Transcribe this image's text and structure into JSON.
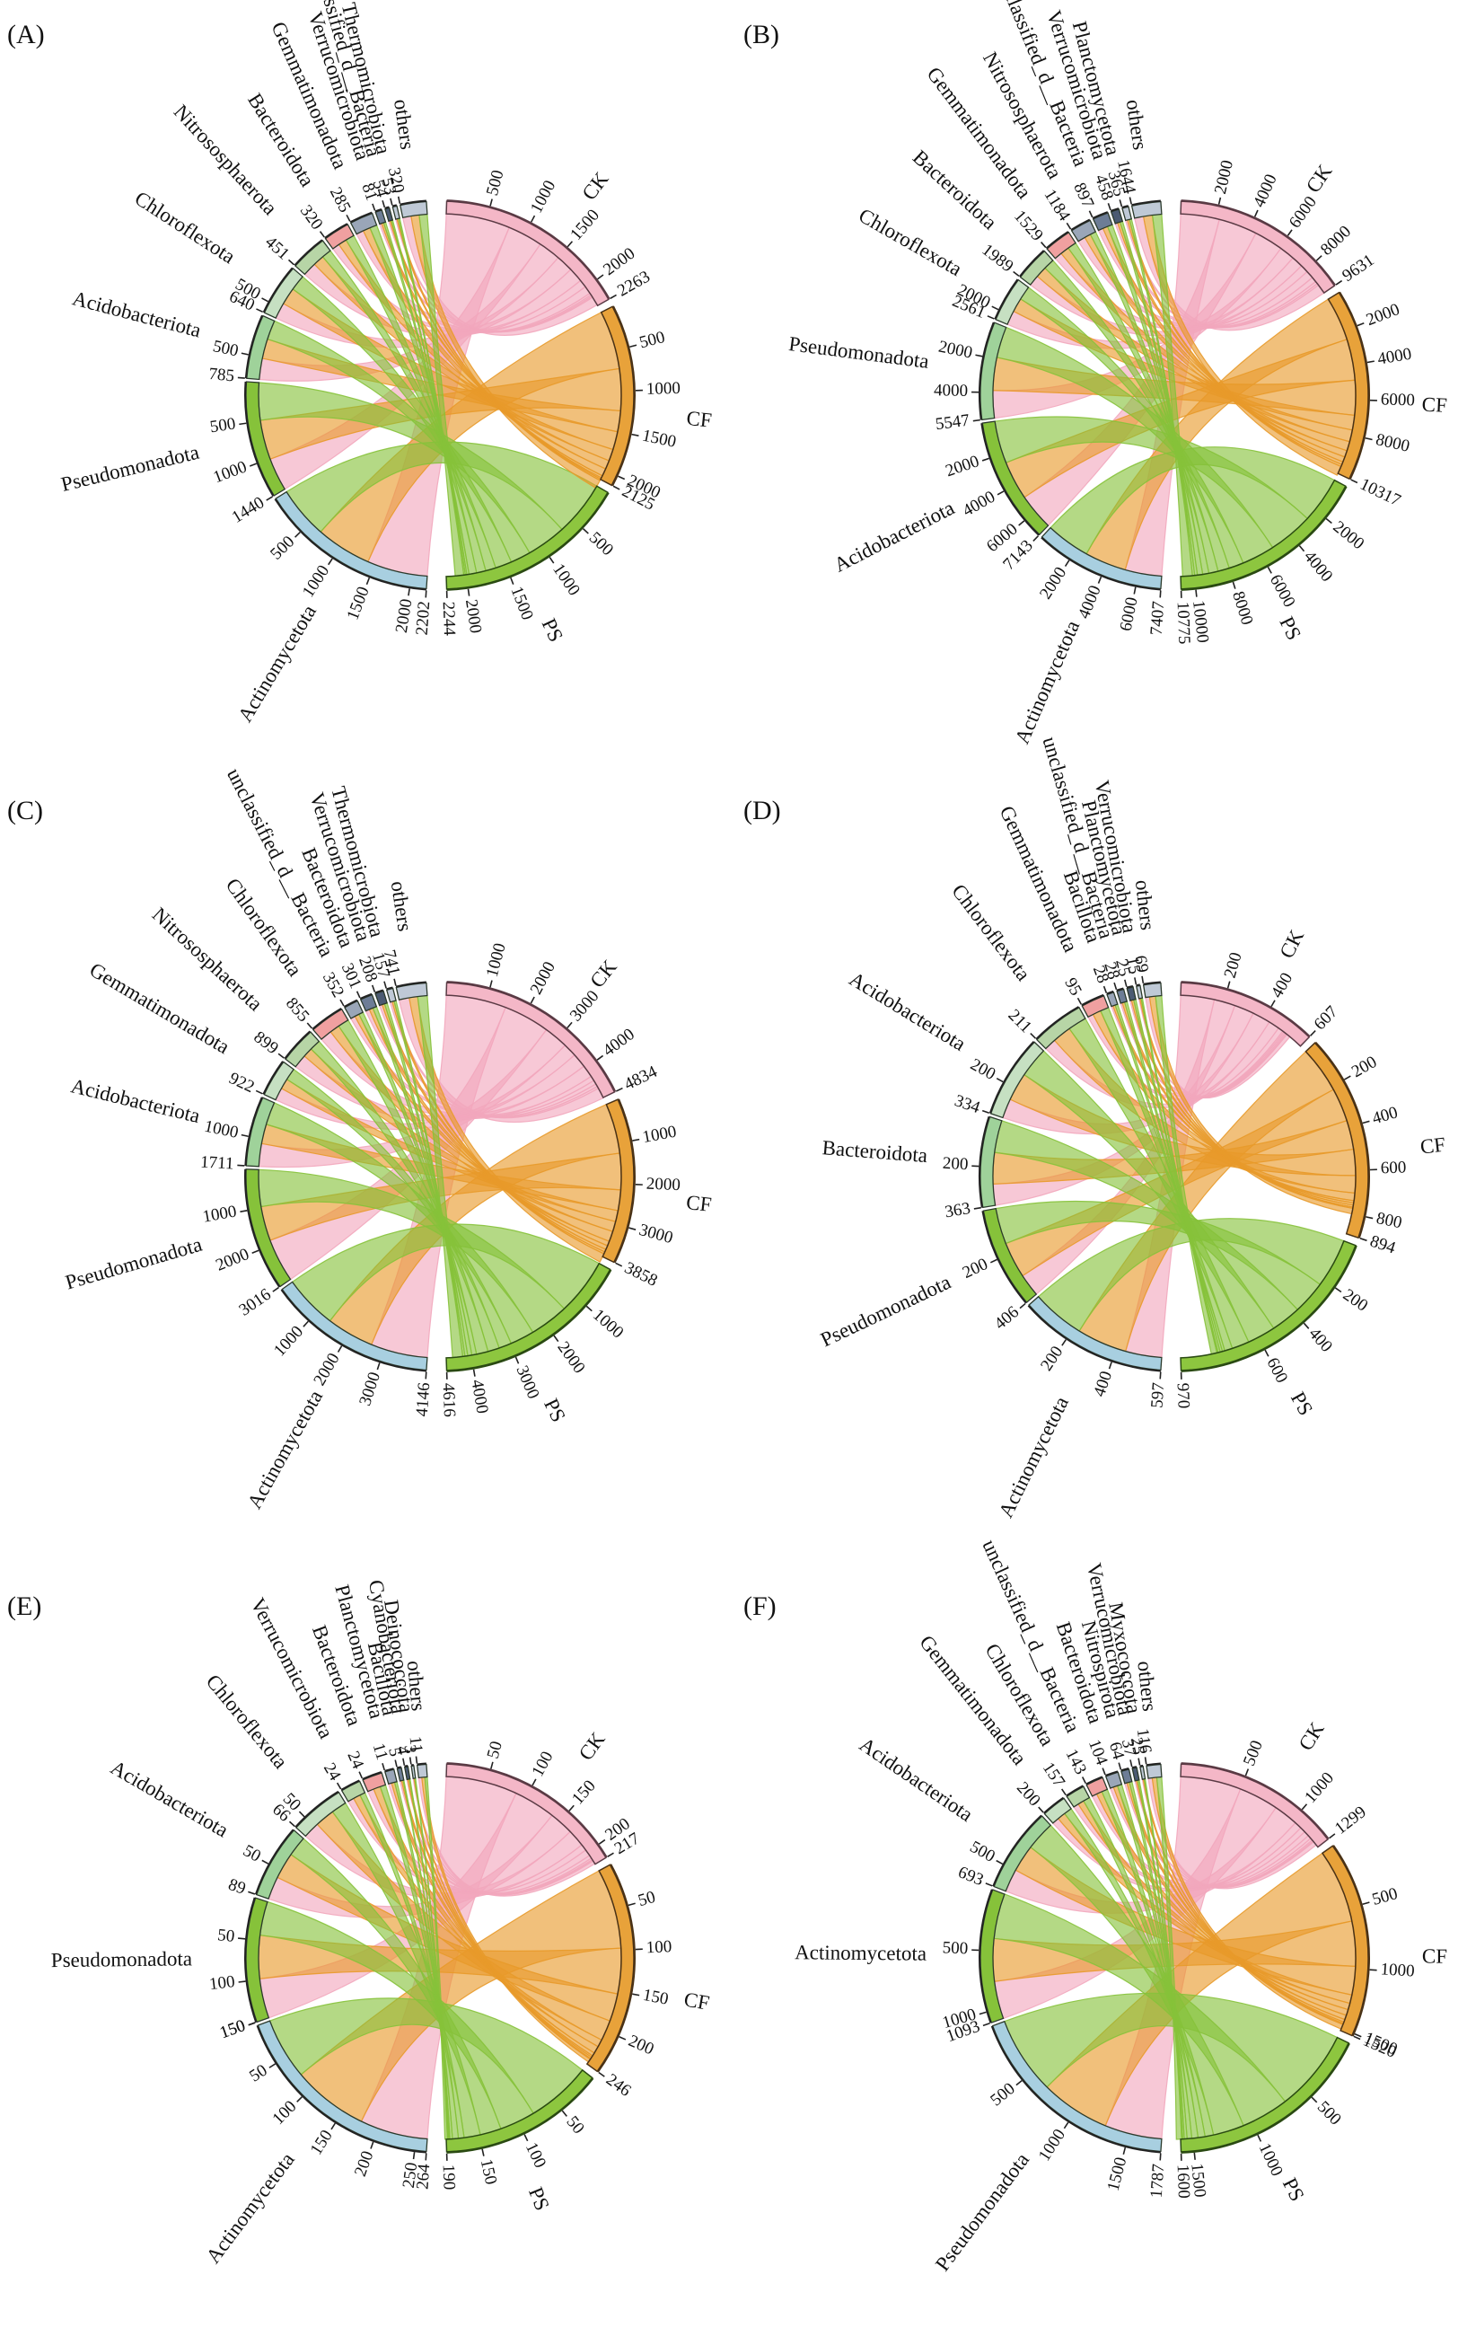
{
  "colors": {
    "CK": "#f4b7c7",
    "CF": "#e8a23a",
    "PS": "#8dc63f",
    "ribbon_CK": "#f2a7bd",
    "ribbon_CF": "#e89a2a",
    "ribbon_PS": "#86c23a",
    "outline_CK": "#5a3a44",
    "outline_CF": "#4a3216",
    "outline_PS": "#2a4a12",
    "phylum_1": "#a8cfe0",
    "phylum_2": "#86c23a",
    "phylum_3": "#9fd29a",
    "phylum_4": "#c6e0c2",
    "phylum_5": "#b7d5a6",
    "phylum_6": "#f0a0a0",
    "phylum_7": "#9aa6b8",
    "phylum_8": "#6d7d96",
    "phylum_9": "#4b5a72",
    "phylum_10": "#bfc9d6"
  },
  "chart_data": [
    {
      "panel": "(A)",
      "type": "chord",
      "groups": [
        {
          "name": "CK",
          "total": 2263,
          "ticks": [
            500,
            1000,
            1500,
            2000
          ]
        },
        {
          "name": "CF",
          "total": 2125,
          "ticks": [
            500,
            1000,
            1500,
            2000
          ]
        },
        {
          "name": "PS",
          "total": 2244,
          "ticks": [
            500,
            1000,
            1500,
            2000
          ]
        }
      ],
      "phyla": [
        {
          "name": "Actinomycetota",
          "total": 2202,
          "ticks": [
            500,
            1000,
            1500,
            2000
          ],
          "split": [
            0.36,
            0.33,
            0.31
          ]
        },
        {
          "name": "Pseudomonadota",
          "total": 1440,
          "ticks": [
            500,
            1000
          ],
          "split": [
            0.3,
            0.36,
            0.34
          ]
        },
        {
          "name": "Acidobacteriota",
          "total": 785,
          "ticks": [
            500
          ],
          "split": [
            0.35,
            0.33,
            0.32
          ]
        },
        {
          "name": "Chloroflexota",
          "total": 640,
          "ticks": [
            500
          ],
          "split": [
            0.33,
            0.35,
            0.32
          ]
        },
        {
          "name": "Nitrososphaerota",
          "total": 451,
          "ticks": [],
          "split": [
            0.4,
            0.32,
            0.28
          ]
        },
        {
          "name": "Bacteroidota",
          "total": 320,
          "ticks": [],
          "split": [
            0.3,
            0.34,
            0.36
          ]
        },
        {
          "name": "Gemmatimonadota",
          "total": 285,
          "ticks": [],
          "split": [
            0.34,
            0.33,
            0.33
          ]
        },
        {
          "name": "Verrucomicrobiota",
          "total": 81,
          "ticks": [],
          "split": [
            0.32,
            0.34,
            0.34
          ]
        },
        {
          "name": "unclassified_d__Bacteria",
          "total": 54,
          "ticks": [],
          "split": [
            0.33,
            0.33,
            0.34
          ]
        },
        {
          "name": "Thermomicrobiota",
          "total": 53,
          "ticks": [],
          "split": [
            0.3,
            0.35,
            0.35
          ]
        },
        {
          "name": "others",
          "total": 320,
          "ticks": [],
          "split": [
            0.34,
            0.33,
            0.33
          ]
        }
      ]
    },
    {
      "panel": "(B)",
      "type": "chord",
      "groups": [
        {
          "name": "CK",
          "total": 9631,
          "ticks": [
            2000,
            4000,
            6000,
            8000
          ]
        },
        {
          "name": "CF",
          "total": 10317,
          "ticks": [
            2000,
            4000,
            6000,
            8000
          ]
        },
        {
          "name": "PS",
          "total": 10775,
          "ticks": [
            2000,
            4000,
            6000,
            8000,
            10000
          ]
        }
      ],
      "phyla": [
        {
          "name": "Actinomycetota",
          "total": 7407,
          "ticks": [
            2000,
            4000,
            6000
          ],
          "split": [
            0.3,
            0.34,
            0.36
          ]
        },
        {
          "name": "Acidobacteriota",
          "total": 7143,
          "ticks": [
            2000,
            4000,
            6000
          ],
          "split": [
            0.31,
            0.33,
            0.36
          ]
        },
        {
          "name": "Pseudomonadota",
          "total": 5547,
          "ticks": [
            2000,
            4000
          ],
          "split": [
            0.3,
            0.36,
            0.34
          ]
        },
        {
          "name": "Chloroflexota",
          "total": 2561,
          "ticks": [
            2000
          ],
          "split": [
            0.34,
            0.33,
            0.33
          ]
        },
        {
          "name": "Bacteroidota",
          "total": 1989,
          "ticks": [],
          "split": [
            0.33,
            0.34,
            0.33
          ]
        },
        {
          "name": "Gemmatimonadota",
          "total": 1529,
          "ticks": [],
          "split": [
            0.3,
            0.35,
            0.35
          ]
        },
        {
          "name": "Nitrososphaerota",
          "total": 1184,
          "ticks": [],
          "split": [
            0.38,
            0.32,
            0.3
          ]
        },
        {
          "name": "unclassified_d__Bacteria",
          "total": 897,
          "ticks": [],
          "split": [
            0.33,
            0.33,
            0.34
          ]
        },
        {
          "name": "Verrucomicrobiota",
          "total": 458,
          "ticks": [],
          "split": [
            0.32,
            0.34,
            0.34
          ]
        },
        {
          "name": "Planctomycetota",
          "total": 365,
          "ticks": [],
          "split": [
            0.3,
            0.35,
            0.35
          ]
        },
        {
          "name": "others",
          "total": 1644,
          "ticks": [],
          "split": [
            0.33,
            0.33,
            0.34
          ]
        }
      ]
    },
    {
      "panel": "(C)",
      "type": "chord",
      "groups": [
        {
          "name": "CK",
          "total": 4834,
          "ticks": [
            1000,
            2000,
            3000,
            4000
          ]
        },
        {
          "name": "CF",
          "total": 3858,
          "ticks": [
            1000,
            2000,
            3000
          ]
        },
        {
          "name": "PS",
          "total": 4616,
          "ticks": [
            1000,
            2000,
            3000,
            4000
          ]
        }
      ],
      "phyla": [
        {
          "name": "Actinomycetota",
          "total": 4146,
          "ticks": [
            1000,
            2000,
            3000
          ],
          "split": [
            0.36,
            0.3,
            0.34
          ]
        },
        {
          "name": "Pseudomonadota",
          "total": 3016,
          "ticks": [
            1000,
            2000
          ],
          "split": [
            0.38,
            0.3,
            0.32
          ]
        },
        {
          "name": "Acidobacteriota",
          "total": 1711,
          "ticks": [
            1000
          ],
          "split": [
            0.35,
            0.3,
            0.35
          ]
        },
        {
          "name": "Gemmatimonadota",
          "total": 922,
          "ticks": [],
          "split": [
            0.36,
            0.3,
            0.34
          ]
        },
        {
          "name": "Nitrososphaerota",
          "total": 899,
          "ticks": [],
          "split": [
            0.4,
            0.28,
            0.32
          ]
        },
        {
          "name": "Chloroflexota",
          "total": 855,
          "ticks": [],
          "split": [
            0.36,
            0.3,
            0.34
          ]
        },
        {
          "name": "unclassified_d__Bacteria",
          "total": 352,
          "ticks": [],
          "split": [
            0.34,
            0.33,
            0.33
          ]
        },
        {
          "name": "Bacteroidota",
          "total": 301,
          "ticks": [],
          "split": [
            0.33,
            0.33,
            0.34
          ]
        },
        {
          "name": "Verrucomicrobiota",
          "total": 208,
          "ticks": [],
          "split": [
            0.34,
            0.32,
            0.34
          ]
        },
        {
          "name": "Thermomicrobiota",
          "total": 157,
          "ticks": [],
          "split": [
            0.33,
            0.33,
            0.34
          ]
        },
        {
          "name": "others",
          "total": 741,
          "ticks": [],
          "split": [
            0.36,
            0.3,
            0.34
          ]
        }
      ]
    },
    {
      "panel": "(D)",
      "type": "chord",
      "groups": [
        {
          "name": "CK",
          "total": 607,
          "ticks": [
            200,
            400
          ]
        },
        {
          "name": "CF",
          "total": 894,
          "ticks": [
            200,
            400,
            600,
            800
          ]
        },
        {
          "name": "PS",
          "total": 970,
          "ticks": [
            200,
            400,
            600
          ]
        }
      ],
      "phyla": [
        {
          "name": "Actinomycetota",
          "total": 597,
          "ticks": [
            200,
            400
          ],
          "split": [
            0.26,
            0.36,
            0.38
          ]
        },
        {
          "name": "Pseudomonadota",
          "total": 406,
          "ticks": [
            200
          ],
          "split": [
            0.24,
            0.38,
            0.38
          ]
        },
        {
          "name": "Bacteroidota",
          "total": 363,
          "ticks": [
            200
          ],
          "split": [
            0.25,
            0.37,
            0.38
          ]
        },
        {
          "name": "Acidobacteriota",
          "total": 334,
          "ticks": [
            200
          ],
          "split": [
            0.25,
            0.36,
            0.39
          ]
        },
        {
          "name": "Chloroflexota",
          "total": 211,
          "ticks": [],
          "split": [
            0.24,
            0.38,
            0.38
          ]
        },
        {
          "name": "Gemmatimonadota",
          "total": 95,
          "ticks": [],
          "split": [
            0.25,
            0.37,
            0.38
          ]
        },
        {
          "name": "Bacillota",
          "total": 28,
          "ticks": [],
          "split": [
            0.25,
            0.35,
            0.4
          ]
        },
        {
          "name": "unclassified_d__Bacteria",
          "total": 28,
          "ticks": [],
          "split": [
            0.25,
            0.37,
            0.38
          ]
        },
        {
          "name": "Planctomycetota",
          "total": 25,
          "ticks": [],
          "split": [
            0.24,
            0.38,
            0.38
          ]
        },
        {
          "name": "Verrucomicrobiota",
          "total": 15,
          "ticks": [],
          "split": [
            0.26,
            0.37,
            0.37
          ]
        },
        {
          "name": "others",
          "total": 69,
          "ticks": [],
          "split": [
            0.25,
            0.37,
            0.38
          ]
        }
      ]
    },
    {
      "panel": "(E)",
      "type": "chord",
      "groups": [
        {
          "name": "CK",
          "total": 217,
          "ticks": [
            50,
            100,
            150,
            200
          ]
        },
        {
          "name": "CF",
          "total": 246,
          "ticks": [
            50,
            100,
            150,
            200
          ]
        },
        {
          "name": "PS",
          "total": 190,
          "ticks": [
            50,
            100,
            150
          ]
        }
      ],
      "phyla": [
        {
          "name": "Actinomycetota",
          "total": 264,
          "ticks": [
            50,
            100,
            150,
            200,
            250
          ],
          "split": [
            0.33,
            0.37,
            0.3
          ]
        },
        {
          "name": "Pseudomonadota",
          "total": 150,
          "ticks": [
            50,
            100,
            150
          ],
          "split": [
            0.34,
            0.37,
            0.29
          ]
        },
        {
          "name": "Acidobacteriota",
          "total": 89,
          "ticks": [
            50
          ],
          "split": [
            0.33,
            0.38,
            0.29
          ]
        },
        {
          "name": "Chloroflexota",
          "total": 66,
          "ticks": [
            50
          ],
          "split": [
            0.32,
            0.38,
            0.3
          ]
        },
        {
          "name": "Verrucomicrobiota",
          "total": 24,
          "ticks": [],
          "split": [
            0.33,
            0.38,
            0.29
          ]
        },
        {
          "name": "Bacteroidota",
          "total": 24,
          "ticks": [],
          "split": [
            0.33,
            0.37,
            0.3
          ]
        },
        {
          "name": "Planctomycetota",
          "total": 11,
          "ticks": [],
          "split": [
            0.36,
            0.36,
            0.28
          ]
        },
        {
          "name": "Bacillota",
          "total": 5,
          "ticks": [],
          "split": [
            0.4,
            0.4,
            0.2
          ]
        },
        {
          "name": "Cyanobacteriota",
          "total": 4,
          "ticks": [],
          "split": [
            0.25,
            0.5,
            0.25
          ]
        },
        {
          "name": "Deinococcota",
          "total": 3,
          "ticks": [],
          "split": [
            0.33,
            0.34,
            0.33
          ]
        },
        {
          "name": "others",
          "total": 11,
          "ticks": [],
          "split": [
            0.36,
            0.36,
            0.28
          ]
        }
      ]
    },
    {
      "panel": "(F)",
      "type": "chord",
      "groups": [
        {
          "name": "CK",
          "total": 1299,
          "ticks": [
            500,
            1000
          ]
        },
        {
          "name": "CF",
          "total": 1520,
          "ticks": [
            500,
            1000,
            1500
          ]
        },
        {
          "name": "PS",
          "total": 1600,
          "ticks": [
            500,
            1000,
            1500
          ]
        }
      ],
      "phyla": [
        {
          "name": "Pseudomonadota",
          "total": 1787,
          "ticks": [
            500,
            1000,
            1500
          ],
          "split": [
            0.28,
            0.34,
            0.38
          ]
        },
        {
          "name": "Actinomycetota",
          "total": 1093,
          "ticks": [
            500,
            1000
          ],
          "split": [
            0.3,
            0.34,
            0.36
          ]
        },
        {
          "name": "Acidobacteriota",
          "total": 693,
          "ticks": [
            500
          ],
          "split": [
            0.29,
            0.34,
            0.37
          ]
        },
        {
          "name": "Gemmatimonadota",
          "total": 200,
          "ticks": [],
          "split": [
            0.3,
            0.35,
            0.35
          ]
        },
        {
          "name": "Chloroflexota",
          "total": 157,
          "ticks": [],
          "split": [
            0.29,
            0.34,
            0.37
          ]
        },
        {
          "name": "unclassified_d__Bacteria",
          "total": 143,
          "ticks": [],
          "split": [
            0.3,
            0.34,
            0.36
          ]
        },
        {
          "name": "Bacteroidota",
          "total": 104,
          "ticks": [],
          "split": [
            0.28,
            0.35,
            0.37
          ]
        },
        {
          "name": "Nitrospirota",
          "total": 64,
          "ticks": [],
          "split": [
            0.3,
            0.34,
            0.36
          ]
        },
        {
          "name": "Verrucomicrobiota",
          "total": 37,
          "ticks": [],
          "split": [
            0.3,
            0.35,
            0.35
          ]
        },
        {
          "name": "Myxococcota",
          "total": 25,
          "ticks": [],
          "split": [
            0.28,
            0.36,
            0.36
          ]
        },
        {
          "name": "others",
          "total": 116,
          "ticks": [],
          "split": [
            0.29,
            0.34,
            0.37
          ]
        }
      ]
    }
  ]
}
